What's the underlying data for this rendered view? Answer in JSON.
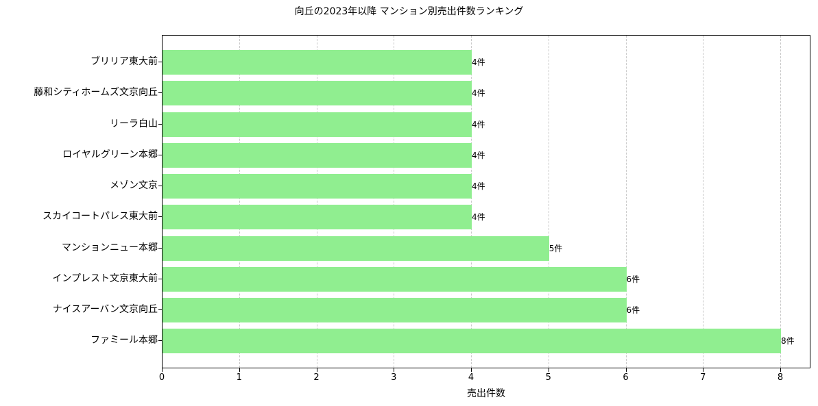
{
  "chart_data": {
    "type": "bar",
    "orientation": "horizontal",
    "title": "向丘の2023年以降 マンション別売出件数ランキング",
    "xlabel": "売出件数",
    "ylabel": "",
    "xlim": [
      0,
      8.4
    ],
    "xticks": [
      "0",
      "1",
      "2",
      "3",
      "4",
      "5",
      "6",
      "7",
      "8"
    ],
    "grid": "x-axis dashed",
    "bar_color": "#90ee90",
    "categories": [
      "ブリリア東大前",
      "藤和シティホームズ文京向丘",
      "リーラ白山",
      "ロイヤルグリーン本郷",
      "メゾン文京",
      "スカイコートパレス東大前",
      "マンションニュー本郷",
      "インプレスト文京東大前",
      "ナイスアーバン文京向丘",
      "ファミール本郷"
    ],
    "values": [
      4,
      4,
      4,
      4,
      4,
      4,
      5,
      6,
      6,
      8
    ],
    "bar_labels": [
      "4件",
      "4件",
      "4件",
      "4件",
      "4件",
      "4件",
      "5件",
      "6件",
      "6件",
      "8件"
    ]
  }
}
